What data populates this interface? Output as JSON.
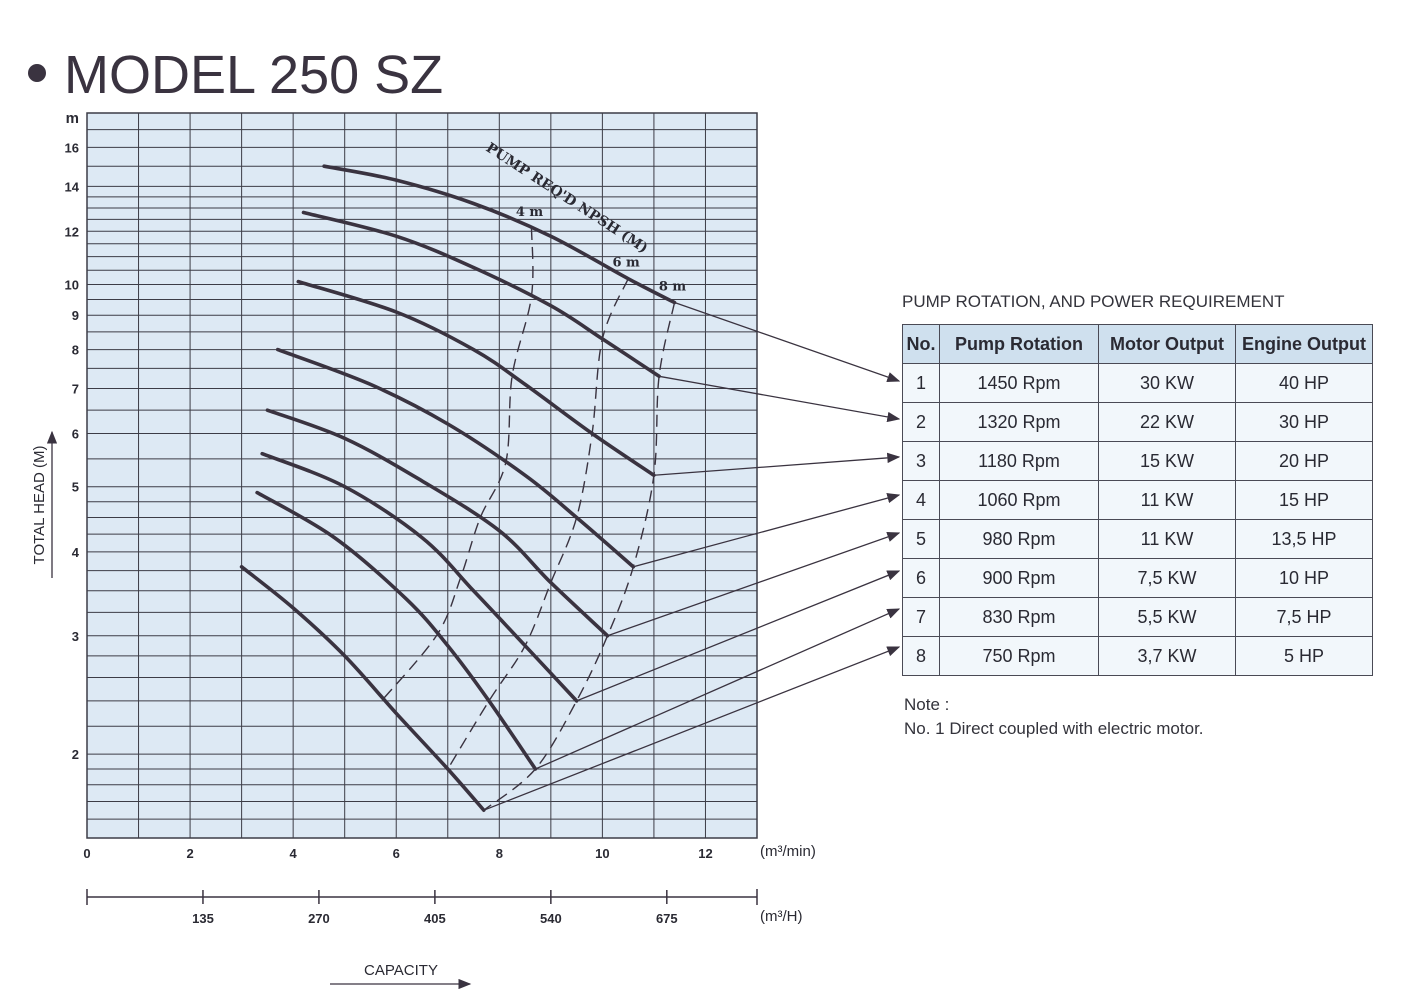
{
  "title": "MODEL 250 SZ",
  "chart_data": {
    "type": "line",
    "ylabel": "TOTAL HEAD (M)",
    "yunit": "m",
    "yscale": "log",
    "yticks": [
      2,
      3,
      4,
      5,
      6,
      7,
      8,
      9,
      10,
      12,
      14,
      16
    ],
    "ylim": [
      1.5,
      18
    ],
    "xlabel": "CAPACITY",
    "xunit_top": "(m³/min)",
    "xticks_top": [
      0,
      2,
      4,
      6,
      8,
      10,
      12
    ],
    "xlim": [
      0,
      13
    ],
    "xunit_bottom": "(m³/H)",
    "xticks_bottom": [
      135,
      270,
      405,
      540,
      675
    ],
    "grid": true,
    "npsh_label": "PUMP REQ'D NPSH (M)",
    "npsh_values": [
      "4 m",
      "6 m",
      "8 m"
    ],
    "series": [
      {
        "name": "1",
        "x": [
          4.6,
          6.0,
          7.5,
          9.0,
          10.5,
          11.4
        ],
        "y": [
          15.0,
          14.3,
          13.2,
          11.8,
          10.2,
          9.4
        ]
      },
      {
        "name": "2",
        "x": [
          4.2,
          6.0,
          7.5,
          9.0,
          10.0,
          11.1
        ],
        "y": [
          12.8,
          11.8,
          10.6,
          9.3,
          8.3,
          7.3
        ]
      },
      {
        "name": "3",
        "x": [
          4.1,
          6.0,
          7.5,
          8.5,
          9.8,
          11.0
        ],
        "y": [
          10.1,
          9.1,
          8.0,
          7.1,
          6.0,
          5.2
        ]
      },
      {
        "name": "4",
        "x": [
          3.7,
          5.5,
          7.0,
          8.5,
          9.5,
          10.6
        ],
        "y": [
          8.0,
          7.1,
          6.2,
          5.2,
          4.5,
          3.8
        ]
      },
      {
        "name": "5",
        "x": [
          3.5,
          5.0,
          6.5,
          8.0,
          9.0,
          10.1
        ],
        "y": [
          6.5,
          5.9,
          5.1,
          4.3,
          3.6,
          3.0
        ]
      },
      {
        "name": "6",
        "x": [
          3.4,
          5.0,
          6.5,
          7.5,
          8.5,
          9.5
        ],
        "y": [
          5.6,
          5.0,
          4.2,
          3.5,
          2.9,
          2.4
        ]
      },
      {
        "name": "7",
        "x": [
          3.3,
          4.8,
          6.2,
          7.0,
          7.8,
          8.7
        ],
        "y": [
          4.9,
          4.2,
          3.4,
          2.9,
          2.4,
          1.9
        ]
      },
      {
        "name": "8",
        "x": [
          3.0,
          4.0,
          5.0,
          6.0,
          7.0,
          7.7
        ],
        "y": [
          3.8,
          3.3,
          2.8,
          2.3,
          1.9,
          1.65
        ]
      }
    ]
  },
  "table": {
    "title": "PUMP ROTATION, AND POWER REQUIREMENT",
    "headers": [
      "No.",
      "Pump Rotation",
      "Motor Output",
      "Engine Output"
    ],
    "rows": [
      [
        "1",
        "1450 Rpm",
        "30   KW",
        "40   HP"
      ],
      [
        "2",
        "1320 Rpm",
        "22   KW",
        "30   HP"
      ],
      [
        "3",
        "1180 Rpm",
        "15   KW",
        "20   HP"
      ],
      [
        "4",
        "1060 Rpm",
        "11   KW",
        "15   HP"
      ],
      [
        "5",
        "980 Rpm",
        "11   KW",
        "13,5 HP"
      ],
      [
        "6",
        "900 Rpm",
        "7,5 KW",
        "10   HP"
      ],
      [
        "7",
        "830 Rpm",
        "5,5 KW",
        "7,5 HP"
      ],
      [
        "8",
        "750 Rpm",
        "3,7 KW",
        "5   HP"
      ]
    ]
  },
  "note": {
    "line1": "Note :",
    "line2": "No. 1 Direct coupled with electric motor."
  },
  "colors": {
    "grid_bg": "#dde9f4",
    "grid_line": "#3c3c46",
    "curve": "#3a3340",
    "header_bg": "#cfe0ee"
  }
}
